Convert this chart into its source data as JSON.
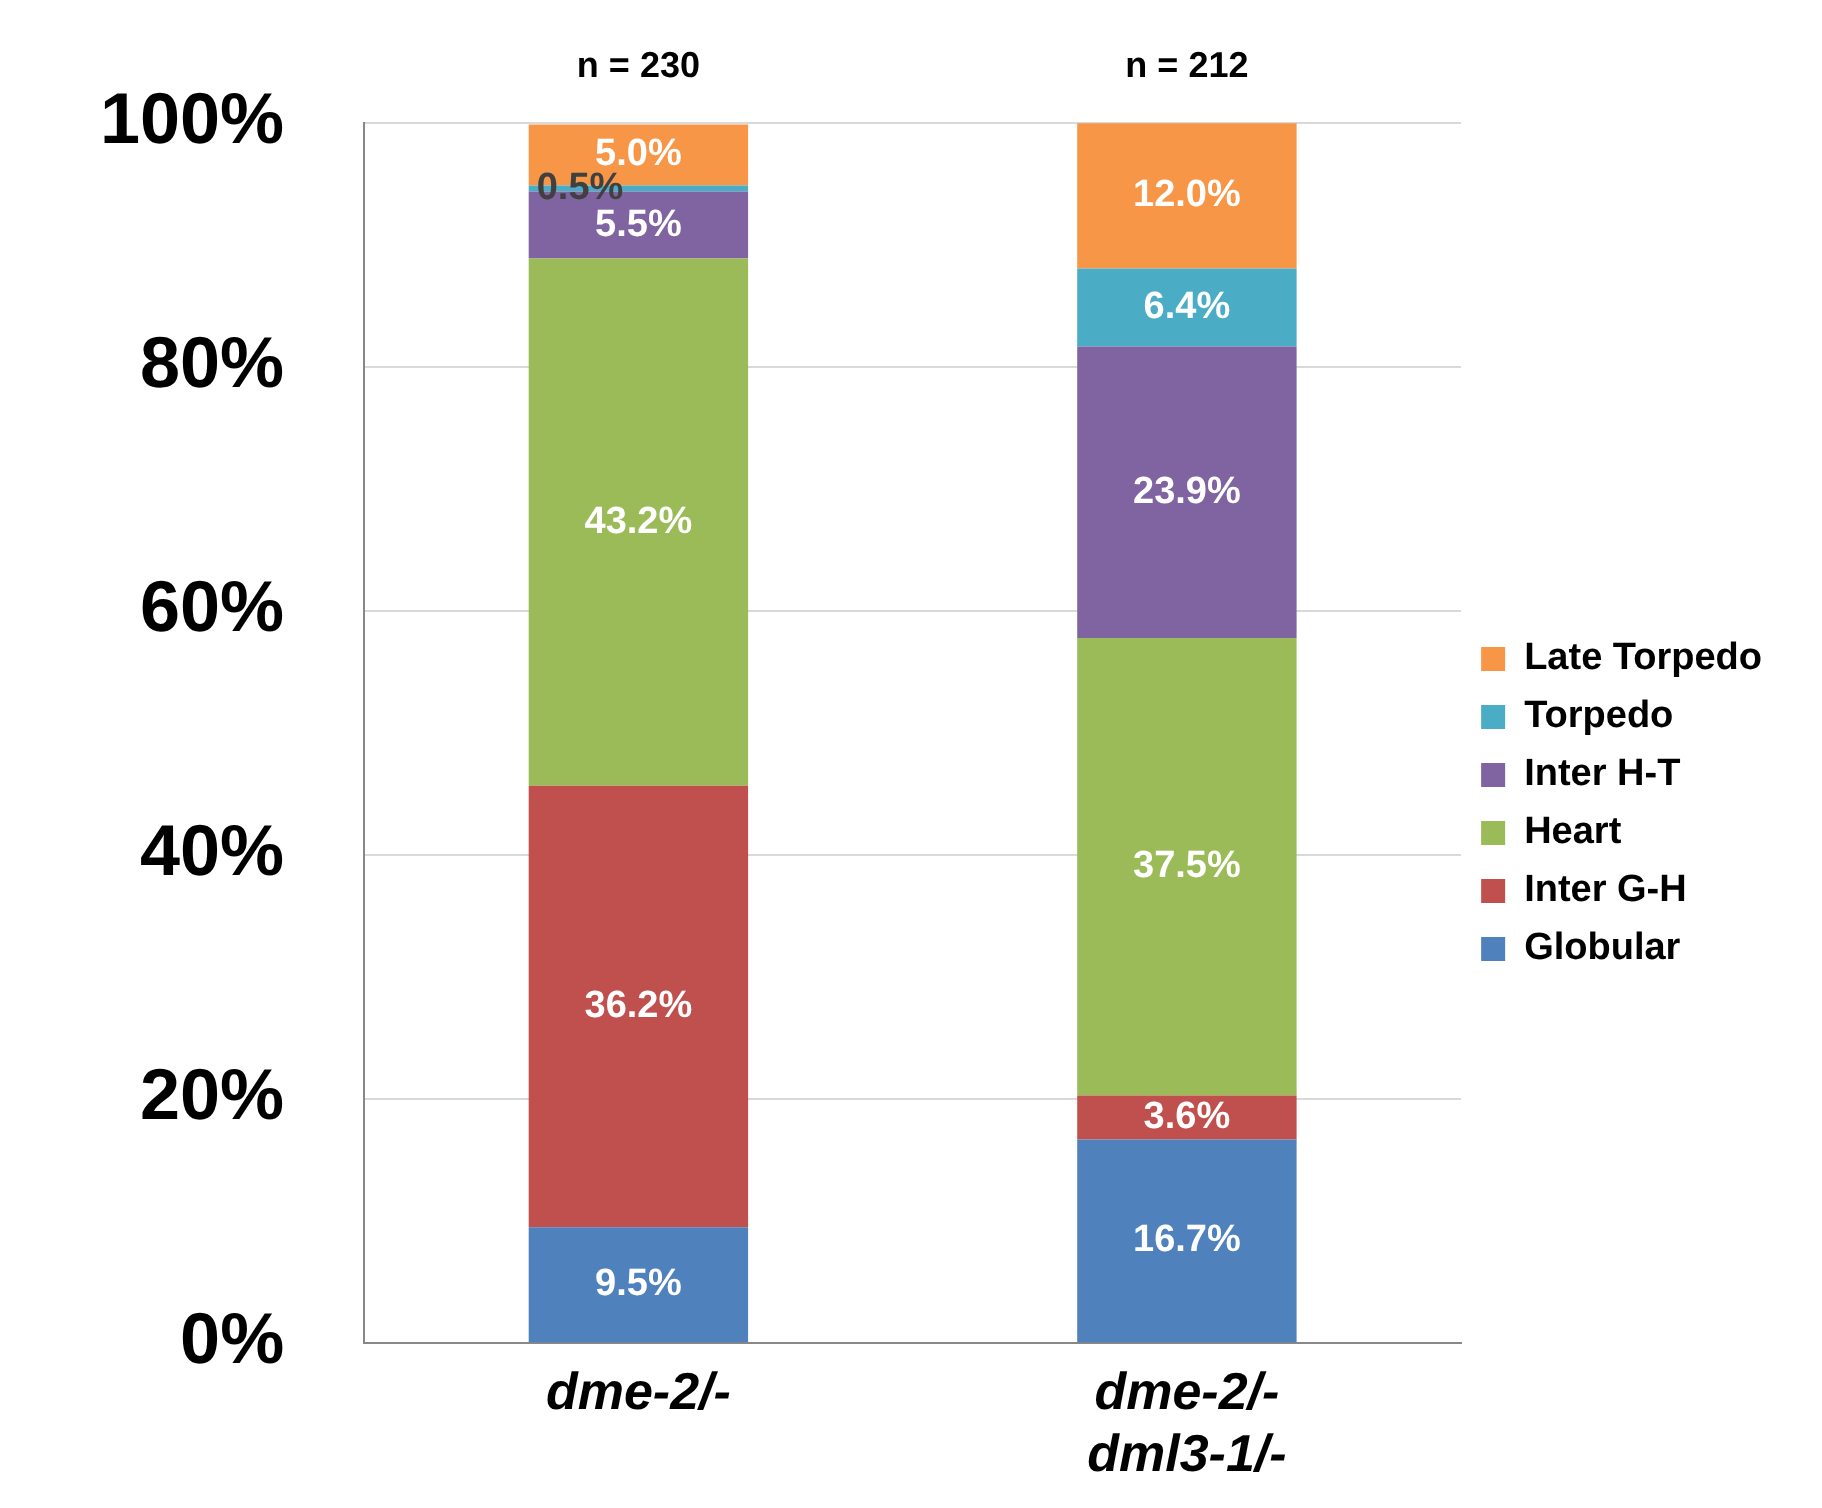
{
  "chart_data": {
    "type": "bar",
    "stacked": true,
    "categories": [
      "dme-2/-",
      "dme-2/-\ndml3-1/-"
    ],
    "series": [
      {
        "name": "Globular",
        "color": "#4f81bd",
        "values": [
          9.5,
          16.7
        ],
        "value_labels": [
          "9.5%",
          "16.7%"
        ]
      },
      {
        "name": "Inter G-H",
        "color": "#c0504d",
        "values": [
          36.2,
          3.6
        ],
        "value_labels": [
          "36.2%",
          "3.6%"
        ]
      },
      {
        "name": "Heart",
        "color": "#9bbb59",
        "values": [
          43.2,
          37.5
        ],
        "value_labels": [
          "43.2%",
          "37.5%"
        ]
      },
      {
        "name": "Inter H-T",
        "color": "#8064a2",
        "values": [
          5.5,
          23.9
        ],
        "value_labels": [
          "5.5%",
          "23.9%"
        ]
      },
      {
        "name": "Torpedo",
        "color": "#4bacc6",
        "values": [
          0.5,
          6.4
        ],
        "value_labels": [
          "0.5%",
          "6.4%"
        ]
      },
      {
        "name": "Late Torpedo",
        "color": "#f79646",
        "values": [
          5.0,
          12.0
        ],
        "value_labels": [
          "5.0%",
          "12.0%"
        ]
      }
    ],
    "ylim": [
      0,
      100
    ],
    "yticks": [
      {
        "value": 0,
        "label": "0%"
      },
      {
        "value": 20,
        "label": "20%"
      },
      {
        "value": 40,
        "label": "40%"
      },
      {
        "value": 60,
        "label": "60%"
      },
      {
        "value": 80,
        "label": "80%"
      },
      {
        "value": 100,
        "label": "100%"
      }
    ],
    "grid": "y",
    "legend": "right",
    "annotations": [
      {
        "text": "n = 230",
        "x": "dme-2/-",
        "y": 100
      },
      {
        "text": "n = 212",
        "x": "dme-2/-\ndml3-1/-",
        "y": 100
      }
    ]
  }
}
